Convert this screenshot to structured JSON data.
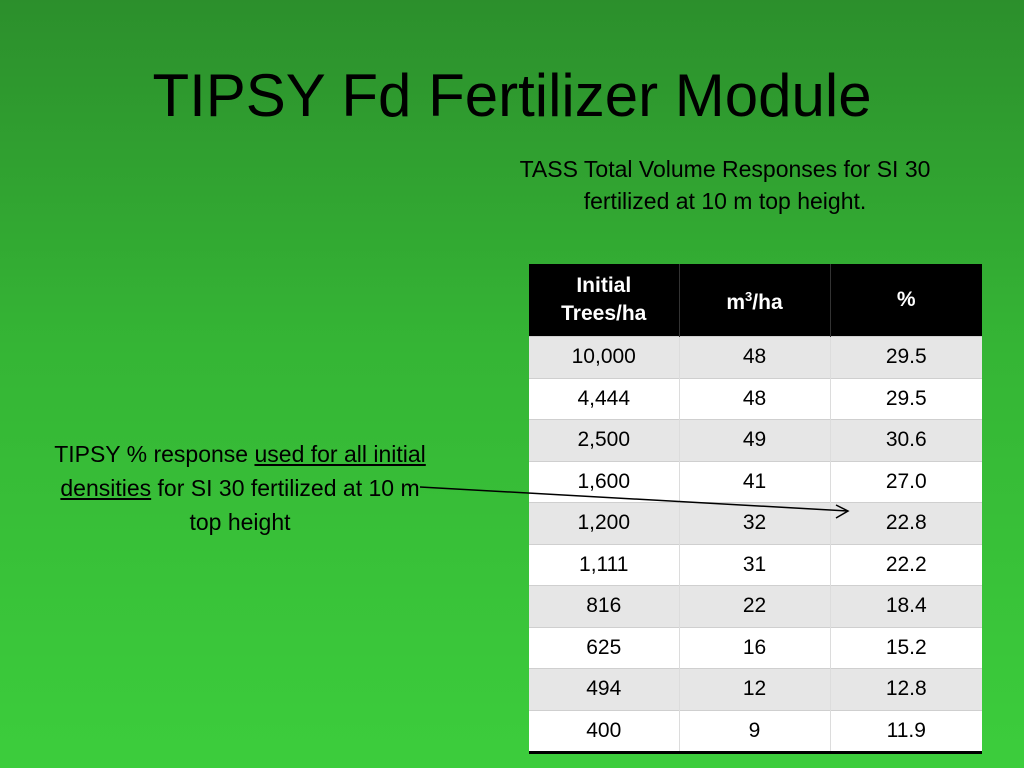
{
  "slide": {
    "title": "TIPSY Fd Fertilizer Module",
    "caption_line1": "TASS Total Volume Responses for SI 30",
    "caption_line2": "fertilized at 10 m top height."
  },
  "note": {
    "part1": "TIPSY % response ",
    "underlined": "used for all initial densities",
    "part2": " for SI 30 fertilized at 10 m top height"
  },
  "table": {
    "headers": {
      "col1_line1": "Initial",
      "col1_line2": "Trees/ha",
      "col2_base": "m",
      "col2_sup": "3",
      "col2_rest": "/ha",
      "col3": "%"
    },
    "rows": [
      [
        "10,000",
        "48",
        "29.5"
      ],
      [
        "4,444",
        "48",
        "29.5"
      ],
      [
        "2,500",
        "49",
        "30.6"
      ],
      [
        "1,600",
        "41",
        "27.0"
      ],
      [
        "1,200",
        "32",
        "22.8"
      ],
      [
        "1,111",
        "31",
        "22.2"
      ],
      [
        "816",
        "22",
        "18.4"
      ],
      [
        "625",
        "16",
        "15.2"
      ],
      [
        "494",
        "12",
        "12.8"
      ],
      [
        "400",
        "9",
        "11.9"
      ]
    ]
  }
}
